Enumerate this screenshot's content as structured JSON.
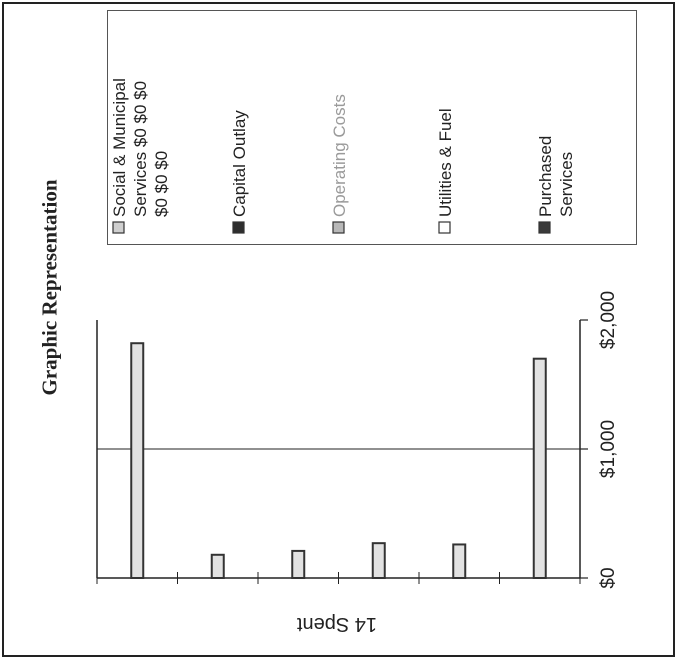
{
  "title": "Graphic Representation",
  "chart_data": {
    "type": "bar",
    "orientation": "horizontal",
    "categories": [
      "",
      "",
      "",
      "",
      "",
      ""
    ],
    "values": [
      1820,
      180,
      210,
      270,
      260,
      1700
    ],
    "xlabel": "14 Spent",
    "ylabel": "",
    "xlim": [
      0,
      2000
    ],
    "x_ticks": [
      "$0",
      "$1,000",
      "$2,000"
    ],
    "grid": true,
    "legend_placement": "top-right",
    "legend": [
      {
        "label_lines": [
          "Social & Municipal",
          "Services $0  $0  $0",
          "$0  $0  $0"
        ],
        "color": "#cfcfcf"
      },
      {
        "label_lines": [
          "Capital Outlay"
        ],
        "color": "#2e2e2e"
      },
      {
        "label_lines": [
          "Operating Costs"
        ],
        "color": "#b8b8b8"
      },
      {
        "label_lines": [
          "Utilities & Fuel"
        ],
        "color": "#ffffff"
      },
      {
        "label_lines": [
          "Purchased",
          "Services"
        ],
        "color": "#3a3a3a"
      }
    ],
    "bar_fill": "#e2e2e2",
    "bar_stroke": "#333333"
  }
}
